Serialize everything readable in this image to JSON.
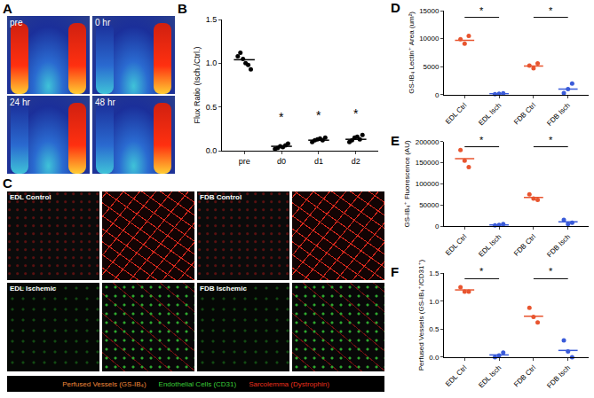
{
  "panels": {
    "A": {
      "label": "A",
      "images": [
        "pre",
        "0 hr",
        "24 hr",
        "48 hr"
      ]
    },
    "C": {
      "label": "C",
      "groups": [
        {
          "label": "EDL Control"
        },
        {
          "label": "FDB Control"
        },
        {
          "label": "EDL Ischemic"
        },
        {
          "label": "FDB Ischemic"
        }
      ],
      "legend": [
        {
          "text": "Perfused Vessels (GS-IB₄)",
          "color": "#f08a3c"
        },
        {
          "text": "Endothelial Cells (CD31)",
          "color": "#3acc3a"
        },
        {
          "text": "Sarcolemma (Dystrophin)",
          "color": "#e8301e"
        }
      ]
    }
  },
  "chart_data": [
    {
      "panel": "B",
      "type": "scatter",
      "marker": "circle",
      "color": "#000000",
      "grid": false,
      "ylabel": "Flux Ratio (Isch./Ctrl.)",
      "categories": [
        "pre",
        "d0",
        "d1",
        "d2"
      ],
      "values": [
        [
          1.08,
          1.12,
          1.05,
          1.0,
          0.98,
          0.93
        ],
        [
          0.02,
          0.03,
          0.05,
          0.04,
          0.06,
          0.08
        ],
        [
          0.1,
          0.12,
          0.13,
          0.14,
          0.12,
          0.15
        ],
        [
          0.1,
          0.12,
          0.15,
          0.16,
          0.13,
          0.18
        ]
      ],
      "means": [
        1.04,
        0.05,
        0.12,
        0.13
      ],
      "ylim": [
        0,
        1.5
      ],
      "yticks": [
        {
          "value": 0,
          "label": "0.0"
        },
        {
          "value": 0.5,
          "label": "0.5"
        },
        {
          "value": 1,
          "label": "1.0"
        },
        {
          "value": 1.5,
          "label": "1.5"
        }
      ],
      "annotations": [
        {
          "category": "d0",
          "y": 0.28,
          "text": "*"
        },
        {
          "category": "d1",
          "y": 0.3,
          "text": "*"
        },
        {
          "category": "d2",
          "y": 0.32,
          "text": "*"
        }
      ]
    },
    {
      "panel": "D",
      "type": "scatter",
      "marker": "circle",
      "grid": false,
      "ylabel": "GS-IB₄ Lectin⁺ Area (um²)",
      "categories": [
        "EDL Ctrl",
        "EDL Isch",
        "FDB Ctrl",
        "FDB Isch"
      ],
      "colors": [
        "#e8552f",
        "#3a5bd9",
        "#e8552f",
        "#3a5bd9"
      ],
      "values": [
        [
          9900,
          9100,
          10500
        ],
        [
          100,
          150,
          250
        ],
        [
          5200,
          4700,
          5600
        ],
        [
          300,
          1000,
          2000
        ]
      ],
      "means": [
        9700,
        150,
        5100,
        1000
      ],
      "ylim": [
        0,
        15000
      ],
      "yticks": [
        0,
        5000,
        10000,
        15000
      ],
      "brackets": [
        {
          "from": "EDL Ctrl",
          "to": "EDL Isch",
          "y": 13800,
          "text": "*"
        },
        {
          "from": "FDB Ctrl",
          "to": "FDB Isch",
          "y": 13800,
          "text": "*"
        }
      ]
    },
    {
      "panel": "E",
      "type": "scatter",
      "marker": "circle",
      "grid": false,
      "ylabel": "GS-IB₄⁺ Fluorescence (AU)",
      "categories": [
        "EDL Ctrl",
        "EDL Isch",
        "FDB Ctrl",
        "FDB Isch"
      ],
      "colors": [
        "#e8552f",
        "#3a5bd9",
        "#e8552f",
        "#3a5bd9"
      ],
      "values": [
        [
          180000,
          155000,
          140000
        ],
        [
          2000,
          3000,
          5000
        ],
        [
          75000,
          65000,
          62000
        ],
        [
          15000,
          5000,
          8000
        ]
      ],
      "means": [
        160000,
        3000,
        68000,
        10000
      ],
      "ylim": [
        0,
        200000
      ],
      "yticks": [
        0,
        50000,
        100000,
        150000,
        200000
      ],
      "brackets": [
        {
          "from": "EDL Ctrl",
          "to": "EDL Isch",
          "y": 188000,
          "text": "*"
        },
        {
          "from": "FDB Ctrl",
          "to": "FDB Isch",
          "y": 188000,
          "text": "*"
        }
      ]
    },
    {
      "panel": "F",
      "type": "scatter",
      "marker": "circle",
      "grid": false,
      "ylabel": "Perfused Vessels (GS-IB₄⁺/CD31⁺)",
      "categories": [
        "EDL Ctrl",
        "EDL Isch",
        "FDB Ctrl",
        "FDB Isch"
      ],
      "colors": [
        "#e8552f",
        "#3a5bd9",
        "#e8552f",
        "#3a5bd9"
      ],
      "values": [
        [
          1.25,
          1.17,
          1.17
        ],
        [
          0.0,
          0.03,
          0.08
        ],
        [
          0.88,
          0.72,
          0.62
        ],
        [
          0.3,
          0.1,
          0.0
        ]
      ],
      "means": [
        1.2,
        0.04,
        0.73,
        0.12
      ],
      "ylim": [
        0,
        1.5
      ],
      "yticks": [
        {
          "value": 0,
          "label": "0.0"
        },
        {
          "value": 0.5,
          "label": "0.5"
        },
        {
          "value": 1,
          "label": "1.0"
        },
        {
          "value": 1.5,
          "label": "1.5"
        }
      ],
      "brackets": [
        {
          "from": "EDL Ctrl",
          "to": "EDL Isch",
          "y": 1.4,
          "text": "*"
        },
        {
          "from": "FDB Ctrl",
          "to": "FDB Isch",
          "y": 1.4,
          "text": "*"
        }
      ]
    }
  ]
}
